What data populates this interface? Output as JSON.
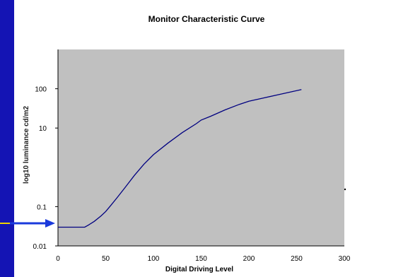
{
  "colors": {
    "slide_background": "#1414b4",
    "panel": "#ffffff",
    "plot_area": "#c0c0c0",
    "curve": "#000080",
    "pointer_arrow": "#1a3adc",
    "pointer_accent": "#f0d200"
  },
  "chart_data": {
    "type": "line",
    "title": "Monitor Characteristic Curve",
    "xlabel": "Digital Driving Level",
    "ylabel": "log10 luminance cd/m2",
    "xlim": [
      0,
      300
    ],
    "ylim": [
      0.01,
      1000
    ],
    "y_scale": "log",
    "grid": false,
    "legend": "none",
    "x_ticks": [
      "0",
      "50",
      "100",
      "150",
      "200",
      "250",
      "300"
    ],
    "y_ticks": [
      "0.01",
      "0.1",
      "10",
      "100"
    ],
    "series": [
      {
        "color": "#000080",
        "x": [
          0,
          10,
          20,
          28,
          32,
          38,
          45,
          50,
          55,
          62,
          70,
          80,
          90,
          100,
          115,
          130,
          145,
          150,
          160,
          175,
          190,
          200,
          215,
          230,
          245,
          255
        ],
        "y": [
          0.03,
          0.03,
          0.03,
          0.03,
          0.034,
          0.042,
          0.058,
          0.075,
          0.105,
          0.17,
          0.3,
          0.62,
          1.2,
          2.1,
          4.1,
          7.6,
          13,
          16,
          20,
          29,
          40,
          48,
          58,
          70,
          84,
          95
        ]
      }
    ]
  }
}
